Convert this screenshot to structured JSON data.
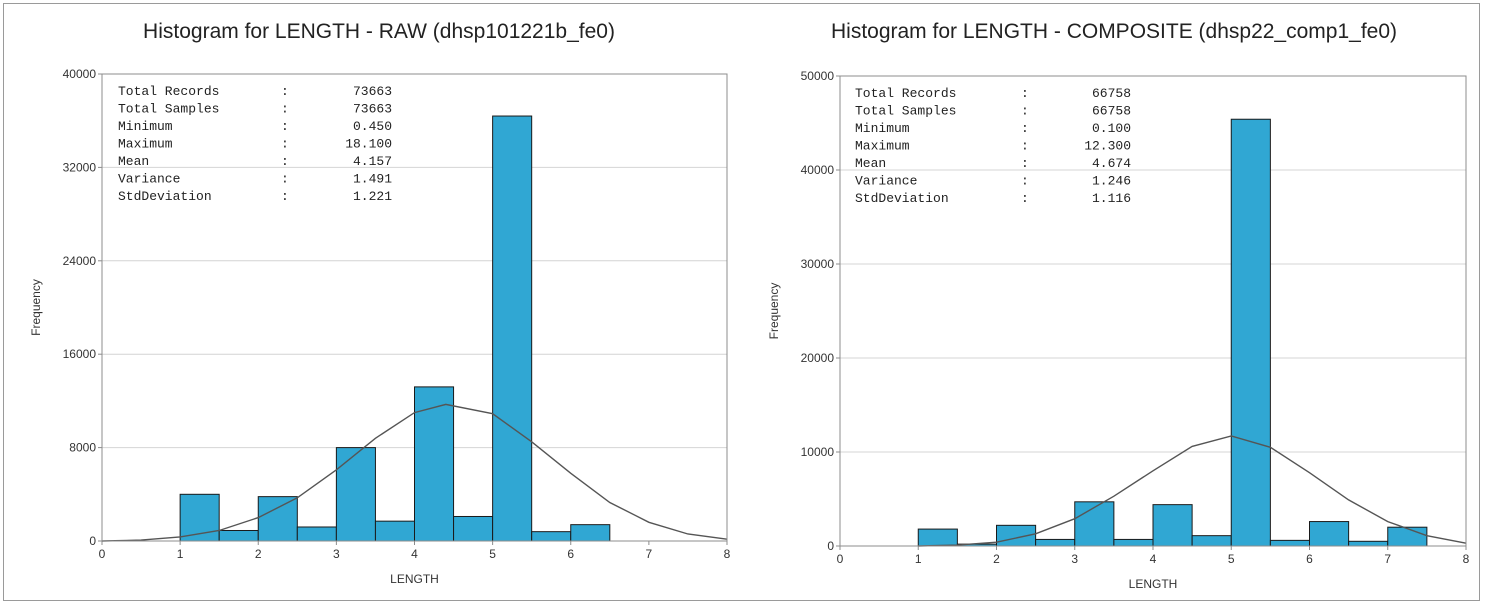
{
  "chart_data": [
    {
      "type": "bar",
      "title": "Histogram for LENGTH - RAW (dhsp101221b_fe0)",
      "xlabel": "LENGTH",
      "ylabel": "Frequency",
      "xlim": [
        0,
        8
      ],
      "ylim": [
        0,
        40000
      ],
      "x_ticks": [
        "0",
        "1",
        "2",
        "3",
        "4",
        "5",
        "6",
        "7",
        "8"
      ],
      "y_ticks": [
        "0",
        "8000",
        "16000",
        "24000",
        "32000",
        "40000"
      ],
      "bin_width": 0.5,
      "bins": [
        {
          "start": 1.0,
          "value": 4000
        },
        {
          "start": 1.5,
          "value": 900
        },
        {
          "start": 2.0,
          "value": 3800
        },
        {
          "start": 2.5,
          "value": 1200
        },
        {
          "start": 3.0,
          "value": 8000
        },
        {
          "start": 3.5,
          "value": 1700
        },
        {
          "start": 4.0,
          "value": 13200
        },
        {
          "start": 4.5,
          "value": 2100
        },
        {
          "start": 5.0,
          "value": 36400
        },
        {
          "start": 5.5,
          "value": 800
        },
        {
          "start": 6.0,
          "value": 1400
        }
      ],
      "curve": {
        "x": [
          0,
          0.5,
          1,
          1.5,
          2,
          2.5,
          3,
          3.5,
          4,
          4.4,
          5,
          5.5,
          6,
          6.5,
          7,
          7.5,
          8
        ],
        "y": [
          0,
          80,
          350,
          900,
          2000,
          3700,
          6100,
          8800,
          11000,
          11700,
          10900,
          8500,
          5800,
          3300,
          1600,
          600,
          150
        ]
      },
      "grid": true,
      "stats": [
        {
          "label": "Total Records",
          "value": "73663"
        },
        {
          "label": "Total Samples",
          "value": "73663"
        },
        {
          "label": "Minimum",
          "value": "0.450"
        },
        {
          "label": "Maximum",
          "value": "18.100"
        },
        {
          "label": "Mean",
          "value": "4.157"
        },
        {
          "label": "Variance",
          "value": "1.491"
        },
        {
          "label": "StdDeviation",
          "value": "1.221"
        }
      ]
    },
    {
      "type": "bar",
      "title": "Histogram for LENGTH - COMPOSITE (dhsp22_comp1_fe0)",
      "xlabel": "LENGTH",
      "ylabel": "Frequency",
      "xlim": [
        0,
        8
      ],
      "ylim": [
        0,
        50000
      ],
      "x_ticks": [
        "0",
        "1",
        "2",
        "3",
        "4",
        "5",
        "6",
        "7",
        "8"
      ],
      "y_ticks": [
        "0",
        "10000",
        "20000",
        "30000",
        "40000",
        "50000"
      ],
      "bin_width": 0.5,
      "bins": [
        {
          "start": 1.0,
          "value": 1800
        },
        {
          "start": 1.5,
          "value": 200
        },
        {
          "start": 2.0,
          "value": 2200
        },
        {
          "start": 2.5,
          "value": 700
        },
        {
          "start": 3.0,
          "value": 4700
        },
        {
          "start": 3.5,
          "value": 700
        },
        {
          "start": 4.0,
          "value": 4400
        },
        {
          "start": 4.5,
          "value": 1100
        },
        {
          "start": 5.0,
          "value": 45400
        },
        {
          "start": 5.5,
          "value": 600
        },
        {
          "start": 6.0,
          "value": 2600
        },
        {
          "start": 6.5,
          "value": 500
        },
        {
          "start": 7.0,
          "value": 2000
        }
      ],
      "curve": {
        "x": [
          1,
          1.5,
          2,
          2.5,
          3,
          3.5,
          4,
          4.5,
          5,
          5.5,
          6,
          6.5,
          7,
          7.5,
          8
        ],
        "y": [
          0,
          100,
          400,
          1300,
          2900,
          5300,
          8000,
          10600,
          11700,
          10500,
          7800,
          4900,
          2600,
          1100,
          300
        ]
      },
      "grid": true,
      "stats": [
        {
          "label": "Total Records",
          "value": "66758"
        },
        {
          "label": "Total Samples",
          "value": "66758"
        },
        {
          "label": "Minimum",
          "value": "0.100"
        },
        {
          "label": "Maximum",
          "value": "12.300"
        },
        {
          "label": "Mean",
          "value": "4.674"
        },
        {
          "label": "Variance",
          "value": "1.246"
        },
        {
          "label": "StdDeviation",
          "value": "1.116"
        }
      ]
    }
  ],
  "colors": {
    "bar_fill": "#30a7d3",
    "bar_stroke": "#1a1a1a",
    "curve": "#555555",
    "grid": "#d4d4d4",
    "axis": "#8c8c8c"
  }
}
